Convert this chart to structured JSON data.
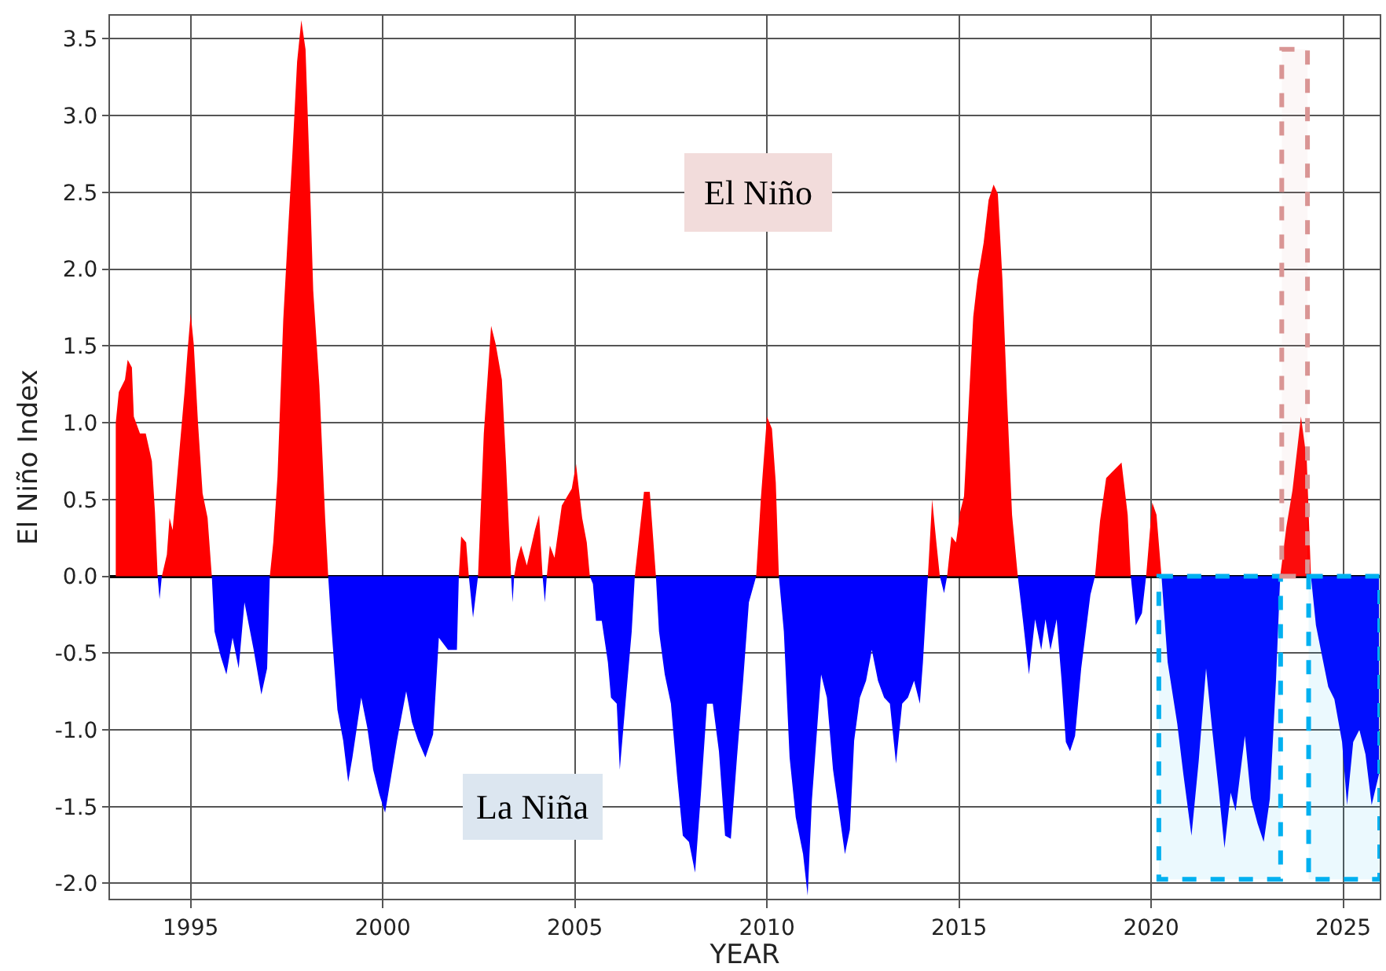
{
  "chart_data": {
    "type": "area",
    "xlabel": "YEAR",
    "ylabel": "El Niño Index",
    "annotations": [
      "El Niño",
      "La Niña"
    ],
    "xlim": [
      1992.9,
      2025.95
    ],
    "xticks": [
      1995,
      2000,
      2005,
      2010,
      2015,
      2020,
      2025
    ],
    "ylim": [
      -2.1,
      3.65
    ],
    "yticks": [
      {
        "value": -2,
        "label": "-2.0"
      },
      -1.5,
      {
        "value": -1,
        "label": "-1.0"
      },
      -0.5,
      {
        "value": 0,
        "label": "0.0"
      },
      0.5,
      {
        "value": 1,
        "label": "1.0"
      },
      1.5,
      {
        "value": 2,
        "label": "2.0"
      },
      2.5,
      {
        "value": 3,
        "label": "3.0"
      },
      3.5
    ],
    "grid": true,
    "bands": [
      {
        "axis": "x",
        "from": 2020.2,
        "to": 2023.37,
        "color": "#00b0f0"
      },
      {
        "axis": "x",
        "from": 2023.4,
        "to": 2024.07,
        "color": "#d99594"
      },
      {
        "axis": "x",
        "from": 2024.1,
        "to": 2025.95,
        "color": "#00b0f0"
      }
    ],
    "series": [
      {
        "color": "#ff0000",
        "x": [
          1993.05,
          1993.13,
          1993.29,
          1993.36,
          1993.47,
          1993.52,
          1993.68,
          1993.83,
          1993.99,
          1994.07,
          1994.14,
          1994.25,
          1994.38,
          1994.45,
          1994.53,
          1994.69,
          1994.84,
          1994.92,
          1995.0,
          1995.08,
          1995.19,
          1995.31,
          1995.44,
          1995.55,
          1997.06,
          1997.15,
          1997.26,
          1997.41,
          1997.52,
          1997.65,
          1997.77,
          1997.88,
          1997.99,
          1998.08,
          1998.19,
          1998.35,
          1998.5,
          1998.58,
          2001.98,
          2002.04,
          2002.17,
          2002.24,
          2002.48,
          2002.63,
          2002.82,
          2002.94,
          2003.1,
          2003.21,
          2003.3,
          2003.34,
          2003.42,
          2003.49,
          2003.6,
          2003.75,
          2003.96,
          2004.07,
          2004.16,
          2004.27,
          2004.35,
          2004.47,
          2004.66,
          2004.92,
          2005.03,
          2005.19,
          2005.31,
          2005.39,
          2006.56,
          2006.69,
          2006.8,
          2006.95,
          2007.11,
          2009.72,
          2009.84,
          2010.0,
          2010.13,
          2010.23,
          2010.31,
          2014.19,
          2014.3,
          2014.41,
          2014.5,
          2014.69,
          2014.8,
          2014.92,
          2015.03,
          2015.13,
          2015.26,
          2015.37,
          2015.48,
          2015.64,
          2015.77,
          2015.9,
          2016.01,
          2016.13,
          2016.25,
          2016.38,
          2016.53,
          2018.54,
          2018.67,
          2018.83,
          2018.99,
          2019.23,
          2019.39,
          2019.47,
          2019.87,
          2020.03,
          2020.14,
          2020.27,
          2023.36,
          2023.52,
          2023.68,
          2023.9,
          2024.05,
          2024.16
        ],
        "values": [
          1.0,
          1.2,
          1.28,
          1.41,
          1.36,
          1.04,
          0.93,
          0.93,
          0.75,
          0.42,
          0,
          0,
          0.14,
          0.38,
          0.3,
          0.77,
          1.2,
          1.47,
          1.71,
          1.51,
          1.0,
          0.54,
          0.38,
          0,
          0,
          0.22,
          0.65,
          1.67,
          2.18,
          2.76,
          3.35,
          3.62,
          3.43,
          2.76,
          1.86,
          1.24,
          0.38,
          0,
          0,
          0.26,
          0.22,
          0,
          0,
          0.93,
          1.63,
          1.51,
          1.28,
          0.73,
          0.22,
          0,
          0,
          0.1,
          0.2,
          0.07,
          0.3,
          0.4,
          0,
          0,
          0.2,
          0.12,
          0.46,
          0.57,
          0.73,
          0.38,
          0.22,
          0,
          0,
          0.3,
          0.55,
          0.55,
          0,
          0,
          0.5,
          1.04,
          0.96,
          0.61,
          0,
          0,
          0.5,
          0.22,
          0,
          0,
          0.26,
          0.22,
          0.42,
          0.52,
          1.16,
          1.69,
          1.93,
          2.17,
          2.45,
          2.55,
          2.49,
          1.93,
          1.16,
          0.4,
          0,
          0,
          0.36,
          0.64,
          0.68,
          0.74,
          0.4,
          0,
          0,
          0.48,
          0.4,
          0,
          0,
          0.32,
          0.56,
          1.04,
          0.76,
          0
        ]
      },
      {
        "color": "#0000ff",
        "x": [
          1994.14,
          1994.19,
          1994.25,
          1995.55,
          1995.62,
          1995.78,
          1995.93,
          1996.09,
          1996.25,
          1996.4,
          1996.64,
          1996.84,
          1996.99,
          1997.06,
          1998.58,
          1998.66,
          1998.82,
          1998.97,
          1999.1,
          1999.21,
          1999.44,
          1999.6,
          1999.75,
          1999.91,
          2000.06,
          2000.22,
          2000.37,
          2000.61,
          2000.76,
          2000.92,
          2001.11,
          2001.31,
          2001.46,
          2001.7,
          2001.93,
          2001.98,
          2002.24,
          2002.35,
          2002.48,
          2003.34,
          2003.38,
          2003.42,
          2004.16,
          2004.22,
          2004.27,
          2005.39,
          2005.47,
          2005.55,
          2005.7,
          2005.86,
          2005.94,
          2006.09,
          2006.17,
          2006.33,
          2006.48,
          2006.56,
          2007.11,
          2007.19,
          2007.34,
          2007.5,
          2007.66,
          2007.81,
          2007.97,
          2008.13,
          2008.28,
          2008.44,
          2008.59,
          2008.75,
          2008.91,
          2009.06,
          2009.22,
          2009.38,
          2009.53,
          2009.72,
          2010.31,
          2010.44,
          2010.59,
          2010.75,
          2010.94,
          2011.06,
          2011.17,
          2011.33,
          2011.41,
          2011.56,
          2011.72,
          2011.88,
          2012.03,
          2012.16,
          2012.27,
          2012.42,
          2012.58,
          2012.73,
          2012.89,
          2013.05,
          2013.2,
          2013.36,
          2013.52,
          2013.67,
          2013.83,
          2013.98,
          2014.06,
          2014.19,
          2014.5,
          2014.61,
          2014.69,
          2016.53,
          2016.66,
          2016.82,
          2016.98,
          2017.14,
          2017.25,
          2017.38,
          2017.54,
          2017.67,
          2017.78,
          2017.89,
          2018.02,
          2018.18,
          2018.42,
          2018.54,
          2019.47,
          2019.6,
          2019.76,
          2019.87,
          2020.27,
          2020.43,
          2020.68,
          2020.84,
          2021.05,
          2021.24,
          2021.43,
          2021.59,
          2021.75,
          2021.91,
          2022.07,
          2022.2,
          2022.44,
          2022.6,
          2022.77,
          2022.93,
          2023.09,
          2023.25,
          2023.36,
          2024.16,
          2024.29,
          2024.45,
          2024.61,
          2024.77,
          2024.97,
          2025.1,
          2025.26,
          2025.42,
          2025.58,
          2025.74,
          2025.93
        ],
        "values": [
          0,
          -0.15,
          0,
          0,
          -0.36,
          -0.52,
          -0.64,
          -0.4,
          -0.6,
          -0.17,
          -0.48,
          -0.77,
          -0.6,
          0,
          0,
          -0.32,
          -0.87,
          -1.07,
          -1.34,
          -1.18,
          -0.79,
          -0.99,
          -1.26,
          -1.42,
          -1.54,
          -1.3,
          -1.07,
          -0.75,
          -0.95,
          -1.07,
          -1.18,
          -1.03,
          -0.4,
          -0.48,
          -0.48,
          0,
          0,
          -0.27,
          0,
          0,
          -0.17,
          0,
          0,
          -0.17,
          0,
          0,
          -0.05,
          -0.29,
          -0.29,
          -0.56,
          -0.79,
          -0.83,
          -1.26,
          -0.79,
          -0.36,
          0,
          0,
          -0.36,
          -0.64,
          -0.83,
          -1.3,
          -1.69,
          -1.73,
          -1.93,
          -1.42,
          -0.83,
          -0.83,
          -1.14,
          -1.69,
          -1.71,
          -1.18,
          -0.68,
          -0.17,
          0,
          0,
          -0.36,
          -1.18,
          -1.57,
          -1.81,
          -2.08,
          -1.46,
          -0.91,
          -0.64,
          -0.79,
          -1.26,
          -1.54,
          -1.81,
          -1.65,
          -1.07,
          -0.79,
          -0.68,
          -0.48,
          -0.68,
          -0.79,
          -0.83,
          -1.22,
          -0.83,
          -0.79,
          -0.68,
          -0.83,
          -0.56,
          0,
          0,
          -0.11,
          0,
          0,
          -0.28,
          -0.64,
          -0.28,
          -0.48,
          -0.28,
          -0.48,
          -0.28,
          -0.68,
          -1.08,
          -1.14,
          -1.04,
          -0.6,
          -0.12,
          0,
          0,
          -0.32,
          -0.24,
          0,
          0,
          -0.56,
          -0.96,
          -1.29,
          -1.69,
          -1.2,
          -0.6,
          -1.0,
          -1.37,
          -1.77,
          -1.41,
          -1.53,
          -1.04,
          -1.45,
          -1.61,
          -1.73,
          -1.45,
          -0.68,
          0,
          0,
          -0.32,
          -0.52,
          -0.72,
          -0.8,
          -1.08,
          -1.49,
          -1.08,
          -1.0,
          -1.16,
          -1.49,
          -1.29
        ]
      }
    ]
  }
}
